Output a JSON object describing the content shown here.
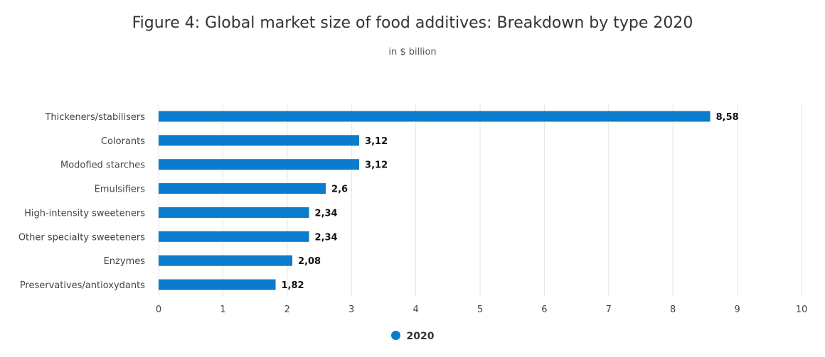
{
  "chart_data": {
    "type": "bar",
    "orientation": "horizontal",
    "title": "Figure 4: Global market size of food additives: Breakdown by type 2020",
    "subtitle": "in $ billion",
    "categories": [
      "Thickeners/stabilisers",
      "Colorants",
      "Modofied starches",
      "Emulsifiers",
      "High-intensity sweeteners",
      "Other specialty sweeteners",
      "Enzymes",
      "Preservatives/antioxydants"
    ],
    "series": [
      {
        "name": "2020",
        "values": [
          8.58,
          3.12,
          3.12,
          2.6,
          2.34,
          2.34,
          2.08,
          1.82
        ],
        "labels": [
          "8,58",
          "3,12",
          "3,12",
          "2,6",
          "2,34",
          "2,34",
          "2,08",
          "1,82"
        ],
        "color": "#0a7ccb"
      }
    ],
    "xlim": [
      0,
      10
    ],
    "xticks": [
      "0",
      "1",
      "2",
      "3",
      "4",
      "5",
      "6",
      "7",
      "8",
      "9",
      "10"
    ],
    "grid": true,
    "legend_position": "bottom"
  }
}
